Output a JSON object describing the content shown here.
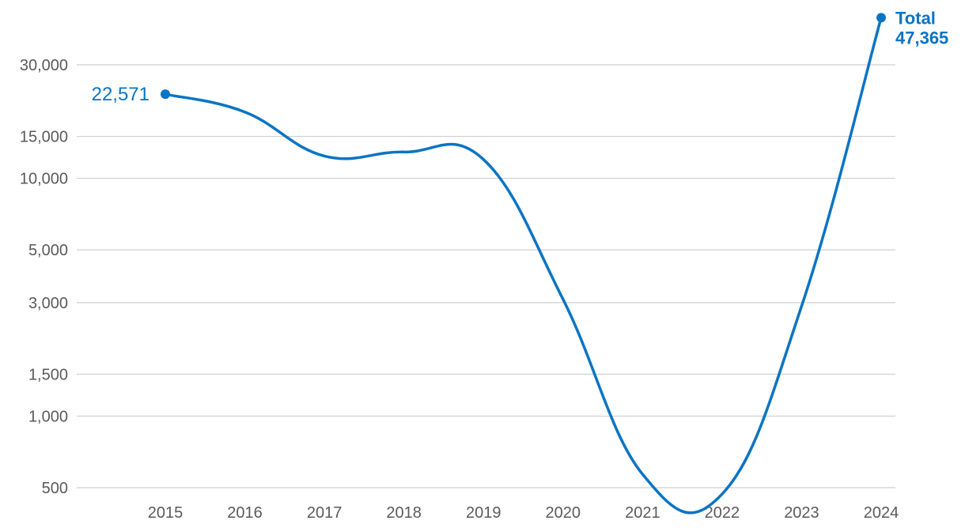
{
  "chart_data": {
    "type": "line",
    "title": "",
    "xlabel": "",
    "ylabel": "",
    "y_scale": "log",
    "grid": "horizontal",
    "x": [
      "2015",
      "2016",
      "2017",
      "2018",
      "2019",
      "2020",
      "2021",
      "2022",
      "2023",
      "2024"
    ],
    "series": [
      {
        "values": [
          22571,
          19000,
          12400,
          12900,
          12000,
          3100,
          570,
          470,
          2900,
          47365
        ],
        "color": "#0a74c4"
      }
    ],
    "y_ticks": [
      30000,
      15000,
      10000,
      5000,
      3000,
      1500,
      1000,
      500
    ],
    "y_tick_labels": [
      "30,000",
      "15,000",
      "10,000",
      "5,000",
      "3,000",
      "1,500",
      "1,000",
      "500"
    ],
    "x_tick_labels": [
      "2015",
      "2016",
      "2017",
      "2018",
      "2019",
      "2020",
      "2021",
      "2022",
      "2023",
      "2024"
    ],
    "annotations": {
      "start_value": "22,571",
      "end_label": "Total",
      "end_value": "47,365"
    }
  }
}
